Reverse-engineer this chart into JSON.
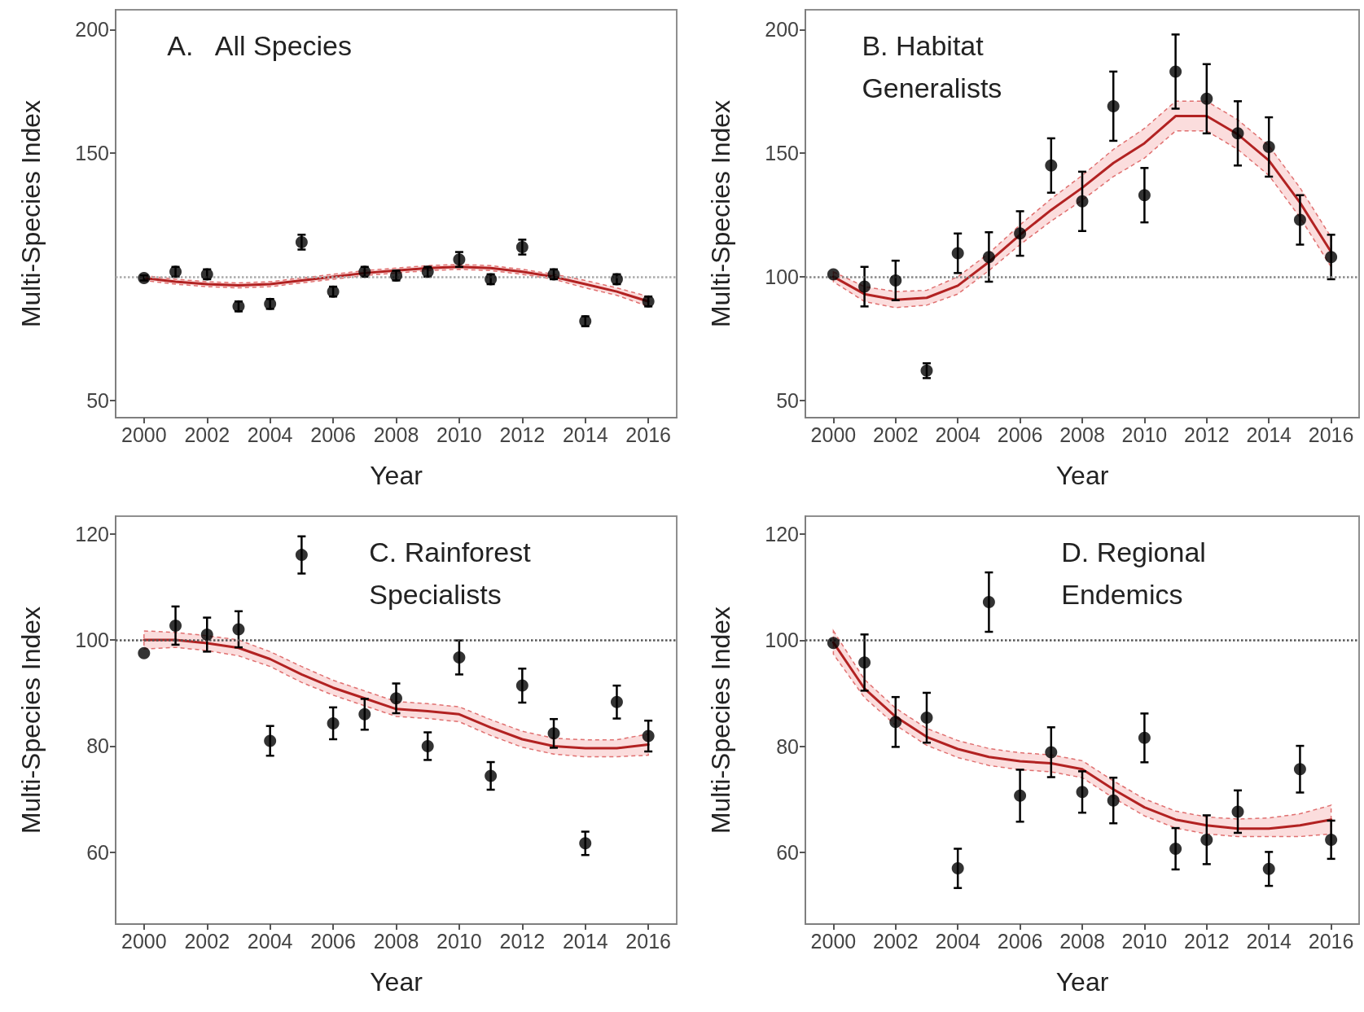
{
  "chart_data": [
    {
      "type": "scatter",
      "title": "A.   All Species",
      "xlabel": "Year",
      "ylabel": "Multi-Species Index",
      "x": [
        2000,
        2001,
        2002,
        2003,
        2004,
        2005,
        2006,
        2007,
        2008,
        2009,
        2010,
        2011,
        2012,
        2013,
        2014,
        2015,
        2016
      ],
      "xlim": [
        1999.1,
        2016.9
      ],
      "xticks": [
        2000,
        2002,
        2004,
        2006,
        2008,
        2010,
        2012,
        2014,
        2016
      ],
      "ylim": [
        43,
        208
      ],
      "yticks": [
        50,
        150,
        200
      ],
      "ref_lines": [
        {
          "axis": "y",
          "value": 100,
          "color": "#aaaaaa",
          "line_style": "dotted"
        }
      ],
      "series": [
        {
          "type": "scatter",
          "color": "#000000",
          "marker": "circle",
          "values": [
            99.5,
            102,
            101,
            88,
            89,
            114,
            94,
            102,
            100.5,
            102,
            107,
            99,
            112,
            101,
            82,
            99,
            90
          ],
          "errors": [
            1,
            2,
            2,
            2,
            2,
            3,
            2,
            2,
            2,
            2,
            3,
            2,
            3,
            2,
            2,
            2,
            2
          ]
        },
        {
          "type": "line",
          "color": "#b22222",
          "marker": "none",
          "values": [
            99.5,
            98,
            97,
            96.5,
            97,
            98.5,
            100,
            101.5,
            102.5,
            103.5,
            104,
            103.5,
            102,
            100,
            97,
            94,
            90
          ],
          "lower": [
            98.5,
            97,
            96,
            95.5,
            96,
            97.5,
            99,
            100.5,
            101.5,
            102.5,
            103,
            102.5,
            101,
            99,
            95.5,
            92.5,
            88
          ],
          "upper": [
            100.5,
            99,
            98,
            97.5,
            98,
            99.5,
            101,
            102.5,
            103.5,
            104.5,
            105,
            104.5,
            103,
            101,
            98.5,
            95.5,
            92
          ]
        }
      ]
    },
    {
      "type": "scatter",
      "title": "B. Habitat Generalists",
      "xlabel": "Year",
      "ylabel": "Multi-Species Index",
      "x": [
        2000,
        2001,
        2002,
        2003,
        2004,
        2005,
        2006,
        2007,
        2008,
        2009,
        2010,
        2011,
        2012,
        2013,
        2014,
        2015,
        2016
      ],
      "xlim": [
        1999.1,
        2016.9
      ],
      "xticks": [
        2000,
        2002,
        2004,
        2006,
        2008,
        2010,
        2012,
        2014,
        2016
      ],
      "ylim": [
        43,
        208
      ],
      "yticks": [
        50,
        100,
        150,
        200
      ],
      "ref_lines": [
        {
          "axis": "y",
          "value": 100,
          "color": "#888888",
          "line_style": "dotted"
        }
      ],
      "series": [
        {
          "type": "scatter",
          "color": "#000000",
          "marker": "circle",
          "values": [
            101,
            96,
            98.5,
            62,
            109.5,
            108,
            117.5,
            145,
            130.5,
            169,
            133,
            183,
            172,
            158,
            152.5,
            123,
            108
          ],
          "errors": [
            null,
            8,
            8,
            3,
            8,
            10,
            9,
            11,
            12,
            14,
            11,
            15,
            14,
            13,
            12,
            10,
            9
          ]
        },
        {
          "type": "line",
          "color": "#b22222",
          "marker": "none",
          "values": [
            100,
            93,
            90.7,
            91.5,
            96.4,
            106,
            117,
            127,
            136,
            146,
            154,
            165,
            165,
            157.6,
            147,
            130,
            110
          ],
          "lower": [
            98,
            90,
            87.5,
            88.5,
            93,
            102.5,
            113,
            122.5,
            131,
            140.5,
            148,
            159,
            159,
            151.5,
            141,
            124,
            104
          ],
          "upper": [
            102,
            96,
            94,
            94.5,
            100,
            109.5,
            121,
            131.5,
            141,
            151.5,
            160,
            171,
            171,
            163.5,
            153,
            136,
            116
          ]
        }
      ]
    },
    {
      "type": "scatter",
      "title": "C. Rainforest Specialists",
      "xlabel": "Year",
      "ylabel": "Multi-Species Index",
      "x": [
        2000,
        2001,
        2002,
        2003,
        2004,
        2005,
        2006,
        2007,
        2008,
        2009,
        2010,
        2011,
        2012,
        2013,
        2014,
        2015,
        2016
      ],
      "xlim": [
        1999.1,
        2016.9
      ],
      "xticks": [
        2000,
        2002,
        2004,
        2006,
        2008,
        2010,
        2012,
        2014,
        2016
      ],
      "ylim": [
        46.5,
        123.3
      ],
      "yticks": [
        60,
        80,
        100,
        120
      ],
      "ref_lines": [
        {
          "axis": "y",
          "value": 100,
          "color": "#555555",
          "line_style": "dotted"
        }
      ],
      "series": [
        {
          "type": "scatter",
          "color": "#000000",
          "marker": "circle",
          "values": [
            97.5,
            102.7,
            101,
            102,
            81,
            116,
            84.3,
            86,
            89,
            80,
            96.7,
            74.4,
            91.4,
            82.4,
            61.7,
            88.3,
            81.9
          ],
          "errors": [
            null,
            3.6,
            3.2,
            3.4,
            2.8,
            3.5,
            3,
            2.9,
            2.8,
            2.6,
            3.2,
            2.6,
            3.2,
            2.7,
            2.2,
            3.1,
            2.9
          ]
        },
        {
          "type": "line",
          "color": "#b22222",
          "marker": "none",
          "values": [
            100,
            100,
            99.4,
            98.5,
            96.4,
            93.5,
            91,
            89,
            87,
            86.6,
            86,
            83.5,
            81.3,
            80,
            79.6,
            79.6,
            80.3
          ],
          "lower": [
            98.3,
            98.6,
            98,
            97,
            95,
            92,
            89.6,
            87.6,
            85.6,
            85.2,
            84.6,
            82,
            79.8,
            78.5,
            78,
            78,
            78.3
          ],
          "upper": [
            101.7,
            101.4,
            100.8,
            100,
            97.8,
            95,
            92.4,
            90.4,
            88.4,
            88,
            87.4,
            85,
            82.8,
            81.5,
            81.2,
            81.2,
            82.3
          ]
        }
      ]
    },
    {
      "type": "scatter",
      "title": "D. Regional Endemics",
      "xlabel": "Year",
      "ylabel": "Multi-Species Index",
      "x": [
        2000,
        2001,
        2002,
        2003,
        2004,
        2005,
        2006,
        2007,
        2008,
        2009,
        2010,
        2011,
        2012,
        2013,
        2014,
        2015,
        2016
      ],
      "xlim": [
        1999.1,
        2016.9
      ],
      "xticks": [
        2000,
        2002,
        2004,
        2006,
        2008,
        2010,
        2012,
        2014,
        2016
      ],
      "ylim": [
        46.5,
        123.4
      ],
      "yticks": [
        60,
        80,
        100,
        120
      ],
      "ref_lines": [
        {
          "axis": "y",
          "value": 100,
          "color": "#555555",
          "line_style": "dotted"
        }
      ],
      "series": [
        {
          "type": "scatter",
          "color": "#000000",
          "marker": "circle",
          "values": [
            99.5,
            95.8,
            84.6,
            85.4,
            57,
            107.2,
            70.7,
            78.9,
            71.4,
            69.8,
            81.6,
            60.7,
            62.4,
            67.7,
            56.9,
            75.7,
            62.4
          ],
          "errors": [
            null,
            5.3,
            4.7,
            4.7,
            3.7,
            5.6,
            4.9,
            4.7,
            3.9,
            4.3,
            4.6,
            3.9,
            4.6,
            4,
            3.2,
            4.4,
            3.6
          ]
        },
        {
          "type": "line",
          "color": "#b22222",
          "marker": "none",
          "values": [
            99.6,
            90.9,
            85.6,
            81.8,
            79.5,
            78,
            77.2,
            76.8,
            75.7,
            71.9,
            68.5,
            66.2,
            65.1,
            64.5,
            64.5,
            65.1,
            66.2
          ],
          "lower": [
            97.4,
            89.2,
            84,
            80.2,
            77.9,
            76.4,
            75.6,
            75.2,
            74.1,
            70.3,
            66.9,
            64.6,
            63.5,
            63,
            63,
            63,
            63.5
          ],
          "upper": [
            101.8,
            92.6,
            87.2,
            83.4,
            81.1,
            79.6,
            78.8,
            78.4,
            77.3,
            73.5,
            70.1,
            67.8,
            66.7,
            66.3,
            66.5,
            67.3,
            68.9
          ]
        }
      ]
    }
  ]
}
